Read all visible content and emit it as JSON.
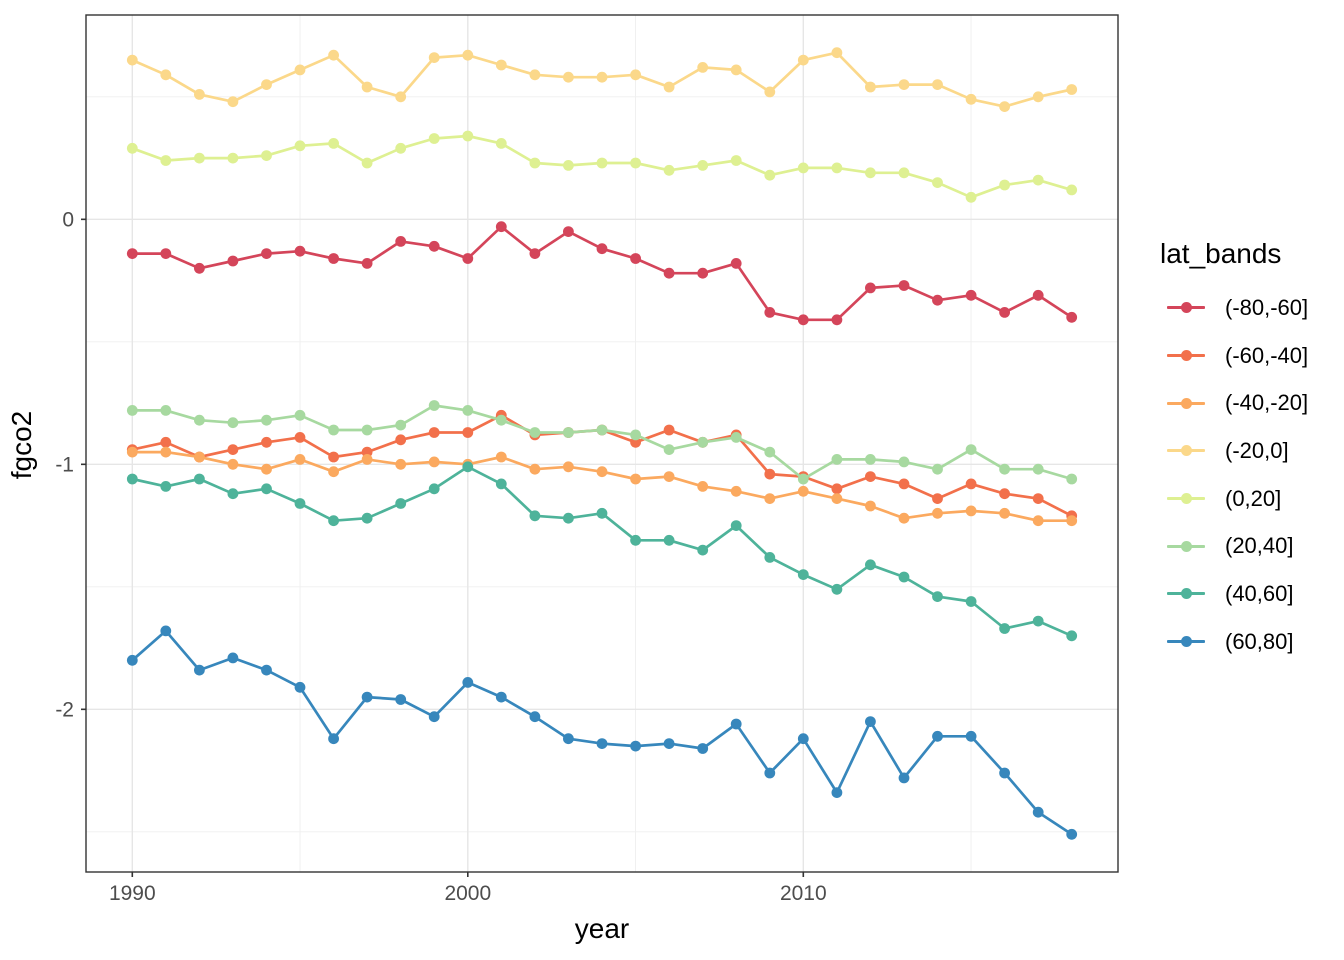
{
  "chart_data": {
    "type": "line",
    "title": "",
    "xlabel": "year",
    "ylabel": "fgco2",
    "legend_title": "lat_bands",
    "legend_position": "right",
    "grid": true,
    "panel": {
      "background": "#ffffff",
      "border_color": "#333333",
      "grid_major_color": "#e6e6e6",
      "grid_minor_color": "#efefef",
      "tick_color": "#333333",
      "tick_label_color": "#4d4d4d"
    },
    "xlim": [
      1988.62,
      2019.38
    ],
    "ylim": [
      -2.664,
      0.834
    ],
    "x_ticks_major": [
      1990,
      2000,
      2010
    ],
    "x_tick_labels": [
      "1990",
      "2000",
      "2010"
    ],
    "x_ticks_minor": [
      1995,
      2005,
      2015
    ],
    "y_ticks_major": [
      0,
      -1,
      -2
    ],
    "y_tick_labels": [
      "0",
      "-1",
      "-2"
    ],
    "y_ticks_minor": [
      0.5,
      -0.5,
      -1.5,
      -2.5
    ],
    "x": [
      1990,
      1991,
      1992,
      1993,
      1994,
      1995,
      1996,
      1997,
      1998,
      1999,
      2000,
      2001,
      2002,
      2003,
      2004,
      2005,
      2006,
      2007,
      2008,
      2009,
      2010,
      2011,
      2012,
      2013,
      2014,
      2015,
      2016,
      2017,
      2018
    ],
    "series": [
      {
        "name": "(-80,-60]",
        "color": "#d4455a",
        "values": [
          -0.14,
          -0.14,
          -0.2,
          -0.17,
          -0.14,
          -0.13,
          -0.16,
          -0.18,
          -0.09,
          -0.11,
          -0.16,
          -0.03,
          -0.14,
          -0.05,
          -0.12,
          -0.16,
          -0.22,
          -0.22,
          -0.18,
          -0.38,
          -0.41,
          -0.41,
          -0.28,
          -0.27,
          -0.33,
          -0.31,
          -0.38,
          -0.31,
          -0.4
        ]
      },
      {
        "name": "(-60,-40]",
        "color": "#f2704b",
        "values": [
          -0.94,
          -0.91,
          -0.97,
          -0.94,
          -0.91,
          -0.89,
          -0.97,
          -0.95,
          -0.9,
          -0.87,
          -0.87,
          -0.8,
          -0.88,
          -0.87,
          -0.86,
          -0.91,
          -0.86,
          -0.91,
          -0.88,
          -1.04,
          -1.05,
          -1.1,
          -1.05,
          -1.08,
          -1.14,
          -1.08,
          -1.12,
          -1.14,
          -1.21
        ]
      },
      {
        "name": "(-40,-20]",
        "color": "#fba95f",
        "values": [
          -0.95,
          -0.95,
          -0.97,
          -1.0,
          -1.02,
          -0.98,
          -1.03,
          -0.98,
          -1.0,
          -0.99,
          -1.0,
          -0.97,
          -1.02,
          -1.01,
          -1.03,
          -1.06,
          -1.05,
          -1.09,
          -1.11,
          -1.14,
          -1.11,
          -1.14,
          -1.17,
          -1.22,
          -1.2,
          -1.19,
          -1.2,
          -1.23,
          -1.23
        ]
      },
      {
        "name": "(-20,0]",
        "color": "#fbd88a",
        "values": [
          0.65,
          0.59,
          0.51,
          0.48,
          0.55,
          0.61,
          0.67,
          0.54,
          0.5,
          0.66,
          0.67,
          0.63,
          0.59,
          0.58,
          0.58,
          0.59,
          0.54,
          0.62,
          0.61,
          0.52,
          0.65,
          0.68,
          0.54,
          0.55,
          0.55,
          0.49,
          0.46,
          0.5,
          0.53
        ]
      },
      {
        "name": "(0,20]",
        "color": "#def092",
        "values": [
          0.29,
          0.24,
          0.25,
          0.25,
          0.26,
          0.3,
          0.31,
          0.23,
          0.29,
          0.33,
          0.34,
          0.31,
          0.23,
          0.22,
          0.23,
          0.23,
          0.2,
          0.22,
          0.24,
          0.18,
          0.21,
          0.21,
          0.19,
          0.19,
          0.15,
          0.09,
          0.14,
          0.16,
          0.12
        ]
      },
      {
        "name": "(20,40]",
        "color": "#a7d9a0",
        "values": [
          -0.78,
          -0.78,
          -0.82,
          -0.83,
          -0.82,
          -0.8,
          -0.86,
          -0.86,
          -0.84,
          -0.76,
          -0.78,
          -0.82,
          -0.87,
          -0.87,
          -0.86,
          -0.88,
          -0.94,
          -0.91,
          -0.89,
          -0.95,
          -1.06,
          -0.98,
          -0.98,
          -0.99,
          -1.02,
          -0.94,
          -1.02,
          -1.02,
          -1.06
        ]
      },
      {
        "name": "(40,60]",
        "color": "#4eb39a",
        "values": [
          -1.06,
          -1.09,
          -1.06,
          -1.12,
          -1.1,
          -1.16,
          -1.23,
          -1.22,
          -1.16,
          -1.1,
          -1.01,
          -1.08,
          -1.21,
          -1.22,
          -1.2,
          -1.31,
          -1.31,
          -1.35,
          -1.25,
          -1.38,
          -1.45,
          -1.51,
          -1.41,
          -1.46,
          -1.54,
          -1.56,
          -1.67,
          -1.64,
          -1.7
        ]
      },
      {
        "name": "(60,80]",
        "color": "#3787bc",
        "values": [
          -1.8,
          -1.68,
          -1.84,
          -1.79,
          -1.84,
          -1.91,
          -2.12,
          -1.95,
          -1.96,
          -2.03,
          -1.89,
          -1.95,
          -2.03,
          -2.12,
          -2.14,
          -2.15,
          -2.14,
          -2.16,
          -2.06,
          -2.26,
          -2.12,
          -2.34,
          -2.05,
          -2.28,
          -2.11,
          -2.11,
          -2.26,
          -2.42,
          -2.51
        ]
      }
    ]
  }
}
